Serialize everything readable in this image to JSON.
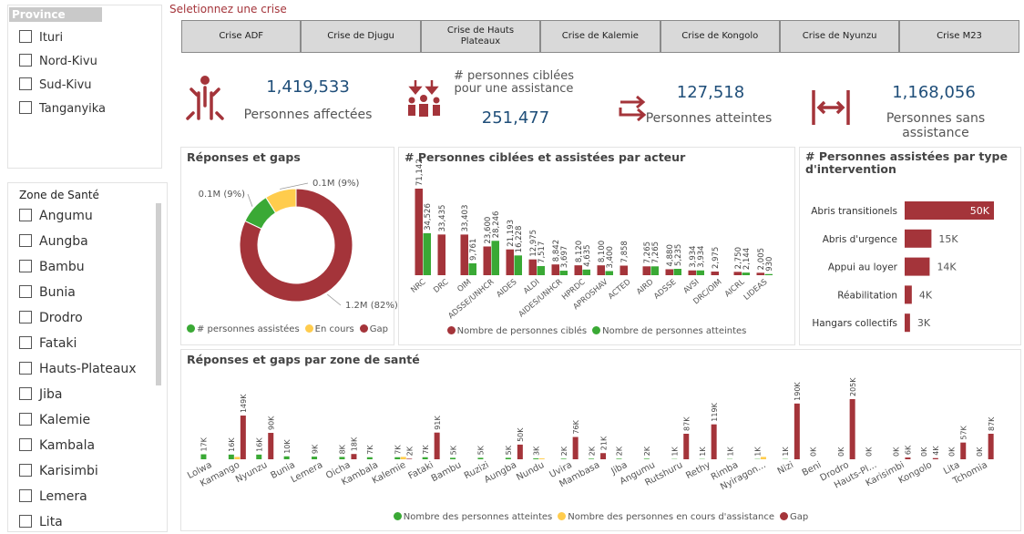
{
  "province_slicer": {
    "title": "Province",
    "items": [
      "Ituri",
      "Nord-Kivu",
      "Sud-Kivu",
      "Tanganyika"
    ]
  },
  "zone_slicer": {
    "title": "Zone de Santé",
    "items": [
      "Angumu",
      "Aungba",
      "Bambu",
      "Bunia",
      "Drodro",
      "Fataki",
      "Hauts-Plateaux",
      "Jiba",
      "Kalemie",
      "Kambala",
      "Karisimbi",
      "Lemera",
      "Lita"
    ]
  },
  "crisis_selector": {
    "label": "Seletionnez une crise",
    "buttons": [
      "Crise ADF",
      "Crise de Djugu",
      "Crise de Hauts Plateaux",
      "Crise de Kalemie",
      "Crise de Kongolo",
      "Crise de Nyunzu",
      "Crise M23"
    ]
  },
  "kpis": [
    {
      "value": "1,419,533",
      "label": "Personnes affectées"
    },
    {
      "label": "# personnes ciblées pour une assistance",
      "value": "251,477"
    },
    {
      "value": "127,518",
      "label": "Personnes atteintes"
    },
    {
      "value": "1,168,056",
      "label": "Personnes sans assistance"
    }
  ],
  "chart_data": [
    {
      "type": "donut",
      "title": "Réponses et gaps",
      "categories": [
        "# personnes assistées",
        "En cours",
        "Gap"
      ],
      "values": [
        9,
        9,
        82
      ],
      "value_labels": [
        "0.1M (9%)",
        "0.1M (9%)",
        "1.2M (82%)"
      ],
      "colors": [
        "#3aa935",
        "#ffcc4d",
        "#a4343a"
      ],
      "legend": "bottom"
    },
    {
      "type": "bar",
      "title": "# Personnes ciblées et assistées par acteur",
      "categories": [
        "NRC",
        "DRC",
        "OIM",
        "ADSSE/UNHCR",
        "AIDES",
        "ALDI",
        "AIDES/UNHCR",
        "HPRDC",
        "APROSHAV",
        "ACTED",
        "AIRD",
        "ADSSE",
        "AVSI",
        "DRC/OIM",
        "AICRL",
        "LIDEAS"
      ],
      "series": [
        {
          "name": "Nombre de personnes ciblés",
          "color": "#a4343a",
          "values": [
            71142,
            33435,
            33403,
            23600,
            21193,
            12975,
            8842,
            8120,
            8100,
            7858,
            7265,
            4880,
            3934,
            2975,
            2750,
            2005
          ],
          "value_labels": [
            "71,142",
            "33,435",
            "33,403",
            "23,600",
            "21,193",
            "12,975",
            "8,842",
            "8,120",
            "8,100",
            "7,858",
            "7,265",
            "4,880",
            "3,934",
            "2,975",
            "2,750",
            "2,005"
          ]
        },
        {
          "name": "Nombre de personnes atteintes",
          "color": "#3aa935",
          "values": [
            34526,
            null,
            9761,
            28246,
            16228,
            7517,
            3697,
            4635,
            3400,
            null,
            7265,
            5235,
            3934,
            null,
            2144,
            930
          ],
          "value_labels": [
            "34,526",
            null,
            "9,761",
            "28,246",
            "16,228",
            "7,517",
            "3,697",
            "4,635",
            "3,400",
            null,
            "7,265",
            "5,235",
            "3,934",
            null,
            "2,144",
            "930"
          ]
        }
      ],
      "legend": "bottom"
    },
    {
      "type": "barh",
      "title": "# Personnes assistées par type d'intervention",
      "categories": [
        "Abris transitionels",
        "Abris d'urgence",
        "Appui au loyer",
        "Réabilitation",
        "Hangars collectifs"
      ],
      "values": [
        50000,
        15000,
        14000,
        4000,
        3000
      ],
      "value_labels": [
        "50K",
        "15K",
        "14K",
        "4K",
        "3K"
      ],
      "color": "#a4343a"
    },
    {
      "type": "bar",
      "title": "Réponses et gaps par zone de santé",
      "categories": [
        "Lolwa",
        "Kamango",
        "Nyunzu",
        "Bunia",
        "Lemera",
        "Oicha",
        "Kambala",
        "Kalemie",
        "Fataki",
        "Bambu",
        "Ruzizi",
        "Aungba",
        "Nundu",
        "Uvira",
        "Mambasa",
        "Jiba",
        "Angumu",
        "Rutshuru",
        "Rethy",
        "Rimba",
        "Nyiragon...",
        "Nizi",
        "Beni",
        "Drodro",
        "Hauts-Pl...",
        "Karisimbi",
        "Kongolo",
        "Lita",
        "Tchomia"
      ],
      "series": [
        {
          "name": "Nombre des personnes atteintes",
          "color": "#3aa935",
          "values": [
            17000,
            16000,
            16000,
            10000,
            9000,
            8000,
            7000,
            7000,
            7000,
            5000,
            5000,
            5000,
            3000,
            2000,
            2000,
            2000,
            2000,
            1000,
            1000,
            1000,
            1000,
            1000,
            0,
            0,
            0,
            0,
            0,
            0,
            0
          ],
          "value_labels": [
            "17K",
            "16K",
            "16K",
            "10K",
            "9K",
            "8K",
            "7K",
            "7K",
            "7K",
            "5K",
            "5K",
            "5K",
            "3K",
            "2K",
            "2K",
            "2K",
            "2K",
            "1K",
            "1K",
            "1K",
            "1K",
            "1K",
            "0K",
            "0K",
            "0K",
            "0K",
            "0K",
            "0K",
            "0K"
          ]
        },
        {
          "name": "Nombre des personnes en cours d'assistance",
          "color": "#ffcc4d",
          "values": [
            null,
            8000,
            null,
            null,
            null,
            null,
            null,
            8000,
            null,
            null,
            null,
            null,
            3000,
            null,
            null,
            null,
            null,
            null,
            null,
            null,
            8000,
            null,
            null,
            null,
            null,
            null,
            null,
            null,
            null
          ]
        },
        {
          "name": "Gap",
          "color": "#a4343a",
          "values": [
            null,
            149000,
            90000,
            null,
            null,
            18000,
            null,
            2000,
            91000,
            null,
            null,
            50000,
            null,
            76000,
            21000,
            null,
            null,
            87000,
            119000,
            null,
            null,
            190000,
            null,
            205000,
            null,
            6000,
            4000,
            57000,
            87000
          ],
          "value_labels": [
            null,
            "149K",
            "90K",
            null,
            null,
            "18K",
            null,
            "2K",
            "91K",
            null,
            null,
            "50K",
            null,
            "76K",
            "21K",
            null,
            null,
            "87K",
            "119K",
            null,
            null,
            "190K",
            null,
            "205K",
            null,
            "6K",
            "4K",
            "57K",
            "87K"
          ]
        }
      ],
      "legend": "bottom"
    }
  ]
}
